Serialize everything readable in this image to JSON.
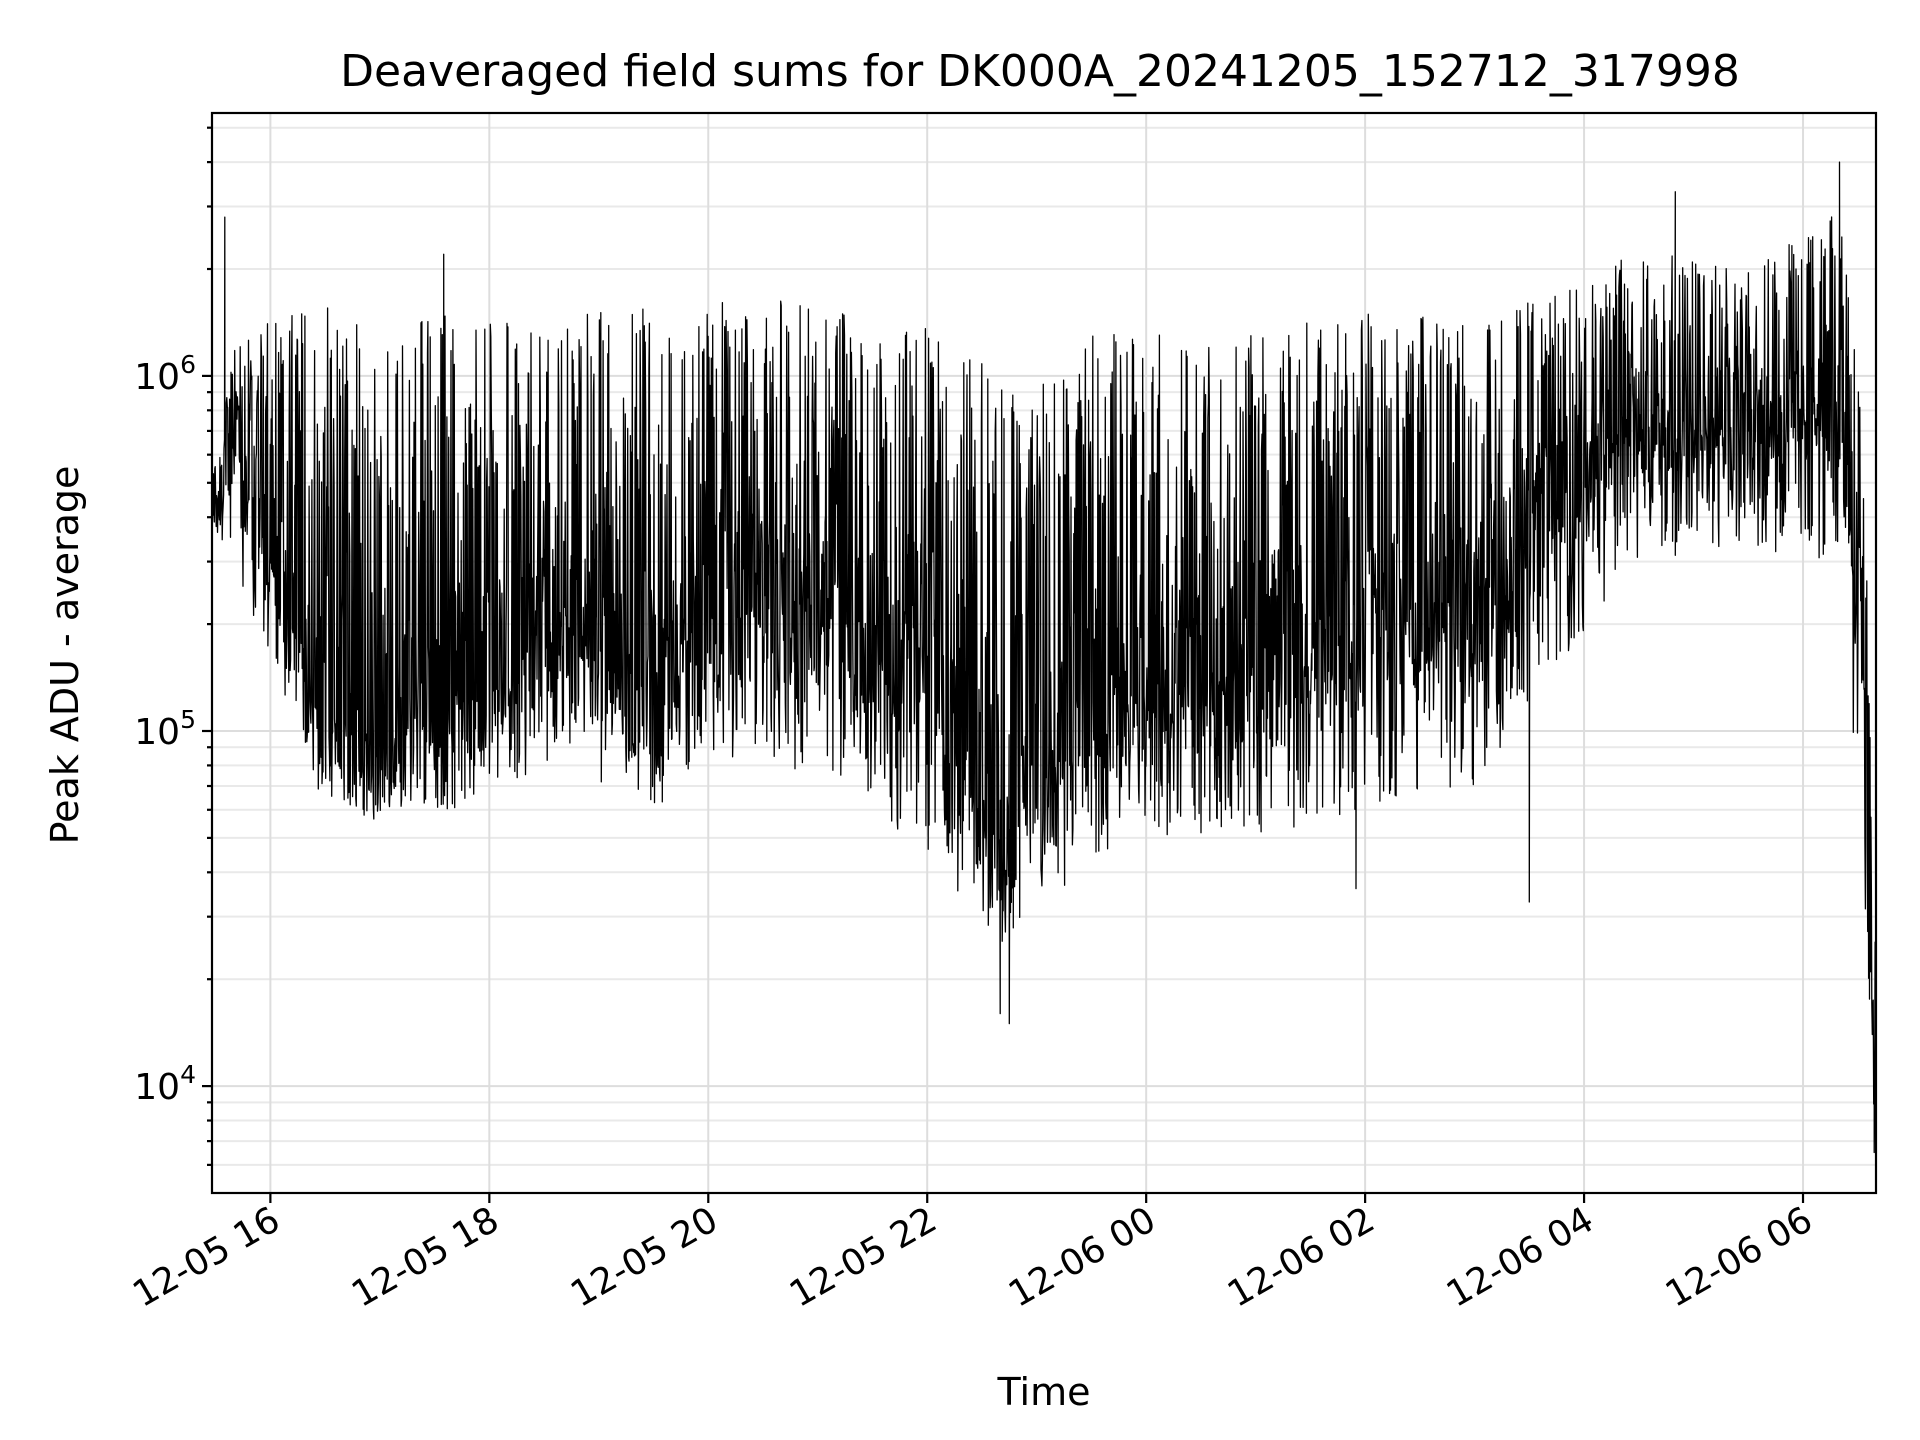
{
  "chart_data": {
    "type": "line",
    "title": "Deaveraged field sums for DK000A_20241205_152712_317998",
    "xlabel": "Time",
    "ylabel": "Peak ADU - average",
    "yscale": "log",
    "xlim": [
      "2024-12-05 15:28",
      "2024-12-06 06:40"
    ],
    "ylim": [
      5000,
      5500000
    ],
    "grid": "major and minor",
    "line_color": "#000000",
    "x_ticks": [
      {
        "value": "2024-12-05 16:00",
        "label": "12-05 16"
      },
      {
        "value": "2024-12-05 18:00",
        "label": "12-05 18"
      },
      {
        "value": "2024-12-05 20:00",
        "label": "12-05 20"
      },
      {
        "value": "2024-12-05 22:00",
        "label": "12-05 22"
      },
      {
        "value": "2024-12-06 00:00",
        "label": "12-06 00"
      },
      {
        "value": "2024-12-06 02:00",
        "label": "12-06 02"
      },
      {
        "value": "2024-12-06 04:00",
        "label": "12-06 04"
      },
      {
        "value": "2024-12-06 06:00",
        "label": "12-06 06"
      }
    ],
    "y_ticks": [
      {
        "value": 10000,
        "base": "10",
        "exp": "4"
      },
      {
        "value": 100000,
        "base": "10",
        "exp": "5"
      },
      {
        "value": 1000000,
        "base": "10",
        "exp": "6"
      }
    ],
    "series": [
      {
        "envelope": [
          {
            "t": "2024-12-05 15:28",
            "low": 380000,
            "mid": 420000,
            "high": 550000
          },
          {
            "t": "2024-12-05 15:40",
            "low": 300000,
            "mid": 700000,
            "high": 1200000
          },
          {
            "t": "2024-12-05 16:00",
            "low": 150000,
            "mid": 350000,
            "high": 1500000
          },
          {
            "t": "2024-12-05 16:30",
            "low": 60000,
            "mid": 110000,
            "high": 1600000
          },
          {
            "t": "2024-12-05 17:00",
            "low": 55000,
            "mid": 100000,
            "high": 1600000
          },
          {
            "t": "2024-12-05 17:40",
            "low": 60000,
            "mid": 120000,
            "high": 1550000
          },
          {
            "t": "2024-12-05 18:00",
            "low": 70000,
            "mid": 150000,
            "high": 1500000
          },
          {
            "t": "2024-12-05 18:40",
            "low": 80000,
            "mid": 220000,
            "high": 1500000
          },
          {
            "t": "2024-12-05 19:30",
            "low": 60000,
            "mid": 130000,
            "high": 1550000
          },
          {
            "t": "2024-12-05 20:00",
            "low": 80000,
            "mid": 220000,
            "high": 1650000
          },
          {
            "t": "2024-12-05 20:40",
            "low": 80000,
            "mid": 260000,
            "high": 1650000
          },
          {
            "t": "2024-12-05 21:30",
            "low": 60000,
            "mid": 180000,
            "high": 1500000
          },
          {
            "t": "2024-12-05 22:00",
            "low": 45000,
            "mid": 130000,
            "high": 1400000
          },
          {
            "t": "2024-12-05 22:40",
            "low": 25000,
            "mid": 60000,
            "high": 1000000
          },
          {
            "t": "2024-12-05 23:00",
            "low": 28000,
            "mid": 80000,
            "high": 1000000
          },
          {
            "t": "2024-12-05 23:30",
            "low": 45000,
            "mid": 130000,
            "high": 1300000
          },
          {
            "t": "2024-12-06 00:00",
            "low": 50000,
            "mid": 140000,
            "high": 1350000
          },
          {
            "t": "2024-12-06 01:00",
            "low": 50000,
            "mid": 150000,
            "high": 1350000
          },
          {
            "t": "2024-12-06 02:00",
            "low": 60000,
            "mid": 200000,
            "high": 1500000
          },
          {
            "t": "2024-12-06 03:00",
            "low": 70000,
            "mid": 230000,
            "high": 1450000
          },
          {
            "t": "2024-12-06 03:45",
            "low": 150000,
            "mid": 450000,
            "high": 1700000
          },
          {
            "t": "2024-12-06 04:30",
            "low": 300000,
            "mid": 750000,
            "high": 2300000
          },
          {
            "t": "2024-12-06 05:30",
            "low": 320000,
            "mid": 750000,
            "high": 2000000
          },
          {
            "t": "2024-12-06 06:20",
            "low": 300000,
            "mid": 800000,
            "high": 3000000
          },
          {
            "t": "2024-12-06 06:32",
            "low": 40000,
            "mid": 200000,
            "high": 800000
          },
          {
            "t": "2024-12-06 06:40",
            "low": 6500,
            "mid": 9000,
            "high": 40000
          }
        ],
        "spikes": [
          {
            "t": "2024-12-05 15:35",
            "value": 2800000
          },
          {
            "t": "2024-12-05 17:35",
            "value": 2200000
          },
          {
            "t": "2024-12-05 22:45",
            "value": 15000
          },
          {
            "t": "2024-12-05 22:40",
            "value": 16000
          },
          {
            "t": "2024-12-06 01:55",
            "value": 36000
          },
          {
            "t": "2024-12-06 03:30",
            "value": 33000
          },
          {
            "t": "2024-12-06 04:50",
            "value": 3300000
          },
          {
            "t": "2024-12-06 06:20",
            "value": 4000000
          },
          {
            "t": "2024-12-06 06:39",
            "value": 6500
          }
        ]
      }
    ]
  }
}
